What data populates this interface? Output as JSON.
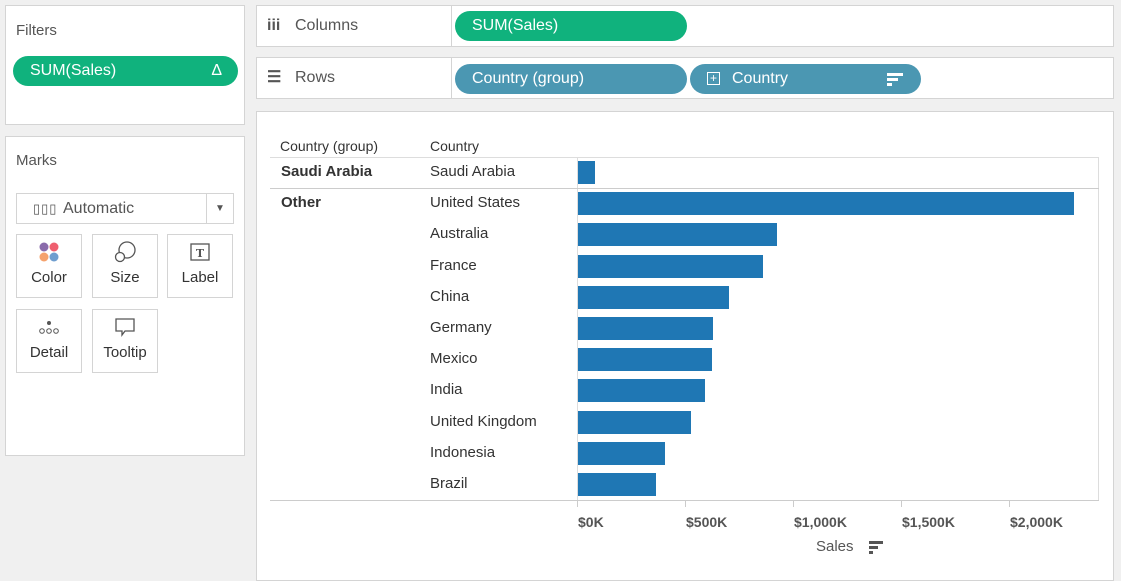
{
  "filters": {
    "title": "Filters",
    "pill": "SUM(Sales)",
    "pill_icon": "Δ"
  },
  "marks": {
    "title": "Marks",
    "mark_type": "Automatic",
    "cards": [
      {
        "label": "Color",
        "icon": "color-icon"
      },
      {
        "label": "Size",
        "icon": "size-icon"
      },
      {
        "label": "Label",
        "icon": "label-icon"
      },
      {
        "label": "Detail",
        "icon": "detail-icon"
      },
      {
        "label": "Tooltip",
        "icon": "tooltip-icon"
      }
    ]
  },
  "shelves": {
    "columns_label": "Columns",
    "columns_pill": "SUM(Sales)",
    "rows_label": "Rows",
    "rows_pills": [
      "Country (group)",
      "Country"
    ]
  },
  "colors": {
    "green_pill": "#10b27d",
    "blue_pill": "#4b97b2",
    "bar": "#1f77b4"
  },
  "chart_data": {
    "type": "bar",
    "orientation": "horizontal",
    "header": [
      "Country (group)",
      "Country"
    ],
    "groups": [
      {
        "name": "Saudi Arabia",
        "rows": [
          {
            "country": "Saudi Arabia",
            "sales": 79000
          }
        ]
      },
      {
        "name": "Other",
        "rows": [
          {
            "country": "United States",
            "sales": 2297000
          },
          {
            "country": "Australia",
            "sales": 921000
          },
          {
            "country": "France",
            "sales": 856000
          },
          {
            "country": "China",
            "sales": 700000
          },
          {
            "country": "Germany",
            "sales": 626000
          },
          {
            "country": "Mexico",
            "sales": 621000
          },
          {
            "country": "India",
            "sales": 589000
          },
          {
            "country": "United Kingdom",
            "sales": 524000
          },
          {
            "country": "Indonesia",
            "sales": 404000
          },
          {
            "country": "Brazil",
            "sales": 361000
          }
        ]
      }
    ],
    "xlabel": "Sales",
    "xticks": [
      "$0K",
      "$500K",
      "$1,000K",
      "$1,500K",
      "$2,000K"
    ],
    "xtick_values": [
      0,
      500000,
      1000000,
      1500000,
      2000000
    ],
    "xlim": [
      0,
      2410000
    ],
    "grid": false
  }
}
